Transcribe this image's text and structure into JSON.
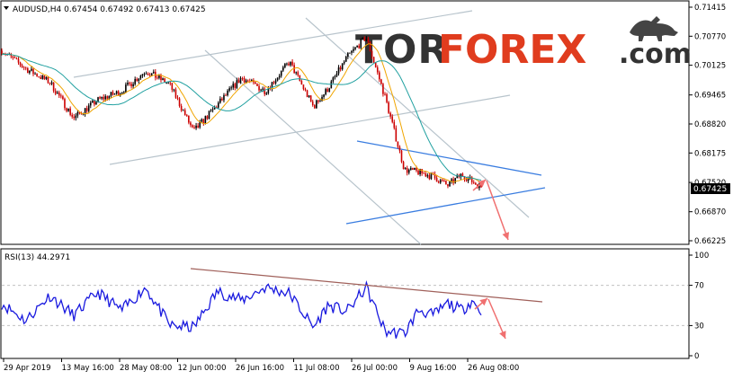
{
  "symbol_header": "AUDUSD,H4  0.67454 0.67492 0.67413 0.67425",
  "watermark": {
    "tor": "TOR",
    "forex": "FOREX",
    "domain": ".com"
  },
  "current_price_label": "0.67425",
  "rsi_header": "RSI(13) 44.2971",
  "colors": {
    "candle": "#000000",
    "candle_bear": "#cc0000",
    "ma_fast": "#f0a500",
    "ma_slow": "#20a0a0",
    "channel": "#b8c4cc",
    "triangle": "#3a7de0",
    "forecast_arrow": "#f07070",
    "rsi_line": "#1a1adf",
    "rsi_trend": "#a0605a",
    "brand_red": "#e03c1e",
    "brand_dark": "#333333"
  },
  "chart_data": [
    {
      "type": "candlestick",
      "symbol": "AUDUSD",
      "timeframe": "H4",
      "ylim": [
        0.66225,
        0.71415
      ],
      "y_ticks": [
        "0.71415",
        "0.70770",
        "0.70125",
        "0.69465",
        "0.68820",
        "0.68175",
        "0.67520",
        "0.66870",
        "0.66225"
      ],
      "x_ticks": [
        "29 Apr 2019",
        "13 May 16:00",
        "28 May 08:00",
        "12 Jun 00:00",
        "26 Jun 16:00",
        "11 Jul 08:00",
        "26 Jul 00:00",
        "9 Aug 16:00",
        "26 Aug 08:00"
      ],
      "price_path_anchors": {
        "x_fraction": [
          0.0,
          0.05,
          0.1,
          0.15,
          0.2,
          0.25,
          0.3,
          0.35,
          0.4,
          0.45,
          0.5,
          0.55,
          0.6,
          0.65,
          0.68,
          0.72,
          0.76,
          0.8,
          0.84,
          0.87,
          0.9,
          0.93,
          0.96,
          0.98,
          1.0
        ],
        "close": [
          0.7045,
          0.7005,
          0.6975,
          0.6895,
          0.6935,
          0.6955,
          0.7,
          0.697,
          0.6865,
          0.6925,
          0.6985,
          0.6955,
          0.702,
          0.692,
          0.696,
          0.703,
          0.7075,
          0.694,
          0.678,
          0.6775,
          0.6765,
          0.6745,
          0.677,
          0.6755,
          0.67425
        ]
      },
      "last_close": 0.67425
    },
    {
      "type": "line",
      "indicator": "RSI(13)",
      "last_value": 44.2971,
      "ylim": [
        0,
        100
      ],
      "y_ticks": [
        "100",
        "70",
        "30",
        "0"
      ],
      "levels": [
        70,
        30
      ],
      "path_anchors": {
        "x_fraction": [
          0.0,
          0.05,
          0.1,
          0.15,
          0.2,
          0.25,
          0.3,
          0.35,
          0.4,
          0.45,
          0.5,
          0.55,
          0.6,
          0.65,
          0.68,
          0.72,
          0.76,
          0.8,
          0.84,
          0.87,
          0.9,
          0.93,
          0.96,
          0.98,
          1.0
        ],
        "value": [
          52,
          35,
          60,
          40,
          63,
          45,
          68,
          30,
          28,
          64,
          55,
          68,
          62,
          28,
          50,
          44,
          68,
          24,
          22,
          46,
          40,
          52,
          45,
          55,
          44
        ]
      }
    }
  ]
}
